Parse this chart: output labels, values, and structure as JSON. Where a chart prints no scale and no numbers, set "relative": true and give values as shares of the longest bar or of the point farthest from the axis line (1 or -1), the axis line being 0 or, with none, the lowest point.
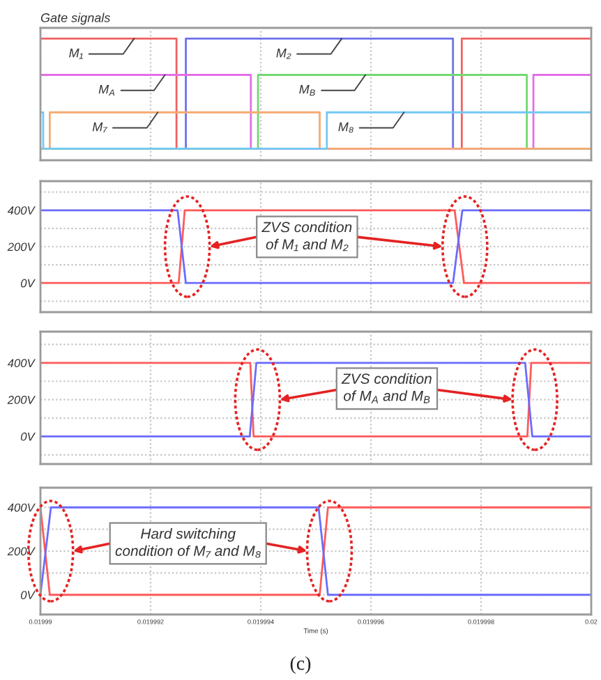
{
  "chart_data": [
    {
      "type": "step",
      "title": "Gate signals",
      "relative": true,
      "xlim": [
        0.01999,
        0.02
      ],
      "xticks": [
        0.01999,
        0.019992,
        0.019994,
        0.019996,
        0.019998,
        0.02
      ],
      "tick_labels": false,
      "grid": "x",
      "series": [
        {
          "name": "M₁",
          "color": "#f06262",
          "x": [
            0.01999,
            0.01999247,
            0.01999765,
            0.02
          ],
          "values": [
            1,
            0,
            1,
            1
          ]
        },
        {
          "name": "M₂",
          "color": "#6f6fea",
          "x": [
            0.01999,
            0.01999264,
            0.01999749,
            0.02
          ],
          "values": [
            0,
            1,
            0,
            0
          ]
        },
        {
          "name": "M$_{A}$",
          "color": "#e46ee8",
          "x": [
            0.01999,
            0.01999382,
            0.01999895,
            0.02
          ],
          "values": [
            0.67,
            0,
            0.67,
            0.67
          ]
        },
        {
          "name": "M$_{B}$",
          "color": "#72d872",
          "x": [
            0.01999,
            0.01999395,
            0.01999883,
            0.02
          ],
          "values": [
            0,
            0.67,
            0,
            0
          ]
        },
        {
          "name": "M₇",
          "color": "#f5aa72",
          "x": [
            0.01999,
            0.01999017,
            0.01999507,
            0.02
          ],
          "values": [
            0,
            0.33,
            0,
            0
          ]
        },
        {
          "name": "M₈",
          "color": "#72c8f2",
          "x": [
            0.01999,
            0.01999005,
            0.0199952,
            0.02
          ],
          "values": [
            0.33,
            0,
            0.33,
            0.33
          ]
        }
      ]
    },
    {
      "type": "line",
      "annotations": [
        "ZVS condition\nof M₁ and M₂"
      ],
      "xlim": [
        0.01999,
        0.02
      ],
      "xticks": [
        0.01999,
        0.019992,
        0.019994,
        0.019996,
        0.019998,
        0.02
      ],
      "ylim": [
        -160,
        560
      ],
      "yticks": [
        {
          "value": -100,
          "label": null
        },
        {
          "value": 0,
          "label": "0V"
        },
        {
          "value": 100,
          "label": null
        },
        {
          "value": 200,
          "label": "200V"
        },
        {
          "value": 300,
          "label": null
        },
        {
          "value": 400,
          "label": "400V"
        },
        {
          "value": 500,
          "label": null
        }
      ],
      "tick_labels": "y",
      "grid": true,
      "series": [
        {
          "color": "#ff5a5a",
          "x": [
            0.01999,
            0.01999251,
            0.01999262,
            0.01999752,
            0.01999769,
            0.02
          ],
          "values": [
            0,
            0,
            400,
            400,
            0,
            0
          ]
        },
        {
          "color": "#6b6bff",
          "x": [
            0.01999,
            0.01999249,
            0.01999264,
            0.01999749,
            0.01999766,
            0.02
          ],
          "values": [
            400,
            400,
            0,
            0,
            400,
            400
          ]
        }
      ]
    },
    {
      "type": "line",
      "annotations": [
        "ZVS condition\nof M$_{A}$ and M$_{B}$"
      ],
      "xlim": [
        0.01999,
        0.02
      ],
      "xticks": [
        0.01999,
        0.019992,
        0.019994,
        0.019996,
        0.019998,
        0.02
      ],
      "ylim": [
        -150,
        570
      ],
      "yticks": [
        {
          "value": -100,
          "label": null
        },
        {
          "value": 0,
          "label": "0V"
        },
        {
          "value": 100,
          "label": null
        },
        {
          "value": 200,
          "label": "200V"
        },
        {
          "value": 300,
          "label": null
        },
        {
          "value": 400,
          "label": "400V"
        },
        {
          "value": 500,
          "label": null
        }
      ],
      "tick_labels": "y",
      "grid": true,
      "series": [
        {
          "color": "#ff5a5a",
          "x": [
            0.01999,
            0.01999381,
            0.01999387,
            0.01999884,
            0.01999891,
            0.02
          ],
          "values": [
            400,
            400,
            0,
            0,
            400,
            400
          ]
        },
        {
          "color": "#6b6bff",
          "x": [
            0.01999,
            0.0199938,
            0.01999392,
            0.0199988,
            0.01999893,
            0.02
          ],
          "values": [
            0,
            0,
            400,
            400,
            0,
            0
          ]
        }
      ]
    },
    {
      "type": "line",
      "annotations": [
        "Hard switching\ncondition of M₇ and M₈",
        "(c)"
      ],
      "xlabel": "Time (s)",
      "xlim": [
        0.01999,
        0.02
      ],
      "xticks": [
        0.01999,
        0.019992,
        0.019994,
        0.019996,
        0.019998,
        0.02
      ],
      "ylim": [
        -90,
        490
      ],
      "yticks": [
        {
          "value": 0,
          "label": "0V"
        },
        {
          "value": 100,
          "label": null
        },
        {
          "value": 200,
          "label": "200V"
        },
        {
          "value": 300,
          "label": null
        },
        {
          "value": 400,
          "label": "400V"
        }
      ],
      "grid": true,
      "series": [
        {
          "color": "#ff5a5a",
          "x": [
            0.01999,
            0.01999017,
            0.01999507,
            0.01999522,
            0.02
          ],
          "values": [
            400,
            0,
            0,
            400,
            400
          ]
        },
        {
          "color": "#6b6bff",
          "x": [
            0.01999,
            0.01999019,
            0.01999505,
            0.01999522,
            0.02
          ],
          "values": [
            0,
            400,
            400,
            0,
            0
          ]
        }
      ]
    }
  ]
}
